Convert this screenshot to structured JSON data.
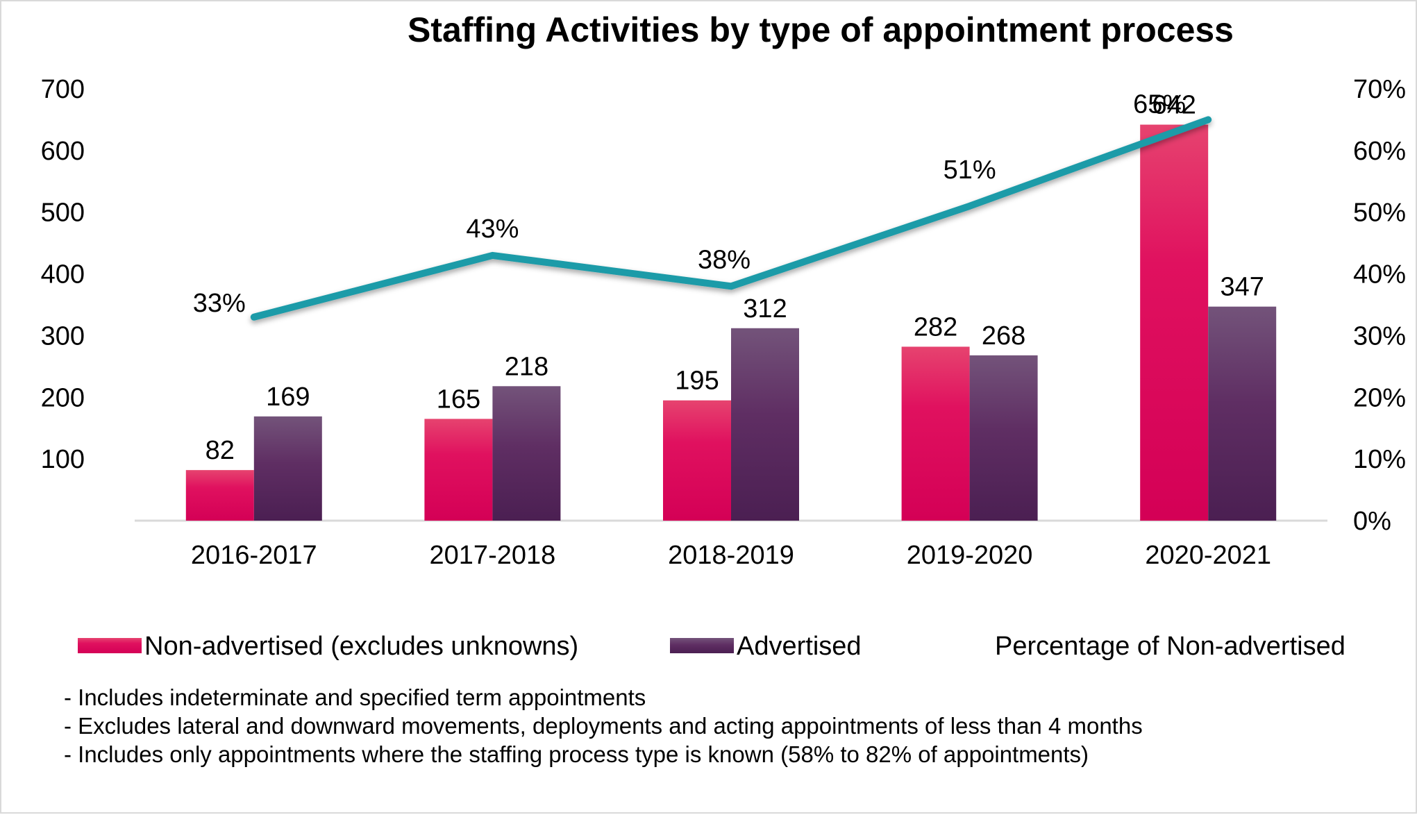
{
  "chart_data": {
    "type": "bar",
    "title": "Staffing Activities by type of appointment process",
    "categories": [
      "2016-2017",
      "2017-2018",
      "2018-2019",
      "2019-2020",
      "2020-2021"
    ],
    "series": [
      {
        "name": "Non-advertised (excludes unknowns)",
        "type": "bar",
        "axis": "left",
        "values": [
          82,
          165,
          195,
          282,
          642
        ],
        "labels": [
          "82",
          "165",
          "195",
          "282",
          "642"
        ],
        "color": "#e0115f"
      },
      {
        "name": "Advertised",
        "type": "bar",
        "axis": "left",
        "values": [
          169,
          218,
          312,
          268,
          347
        ],
        "labels": [
          "169",
          "218",
          "312",
          "268",
          "347"
        ],
        "color": "#5a2a5e"
      },
      {
        "name": "Percentage of Non-advertised",
        "type": "line",
        "axis": "right",
        "values": [
          33,
          43,
          38,
          51,
          65
        ],
        "labels": [
          "33%",
          "43%",
          "38%",
          "51%",
          "65%"
        ],
        "color": "#1a9ba8"
      }
    ],
    "ylim_left": [
      0,
      700
    ],
    "yticks_left": [
      {
        "value": 100,
        "label": "100"
      },
      {
        "value": 200,
        "label": "200"
      },
      {
        "value": 300,
        "label": "300"
      },
      {
        "value": 400,
        "label": "400"
      },
      {
        "value": 500,
        "label": "500"
      },
      {
        "value": 600,
        "label": "600"
      },
      {
        "value": 700,
        "label": "700"
      }
    ],
    "ylim_right": [
      0,
      70
    ],
    "yticks_right": [
      {
        "value": 0,
        "label": "0%"
      },
      {
        "value": 10,
        "label": "10%"
      },
      {
        "value": 20,
        "label": "20%"
      },
      {
        "value": 30,
        "label": "30%"
      },
      {
        "value": 40,
        "label": "40%"
      },
      {
        "value": 50,
        "label": "50%"
      },
      {
        "value": 60,
        "label": "60%"
      },
      {
        "value": 70,
        "label": "70%"
      }
    ],
    "xlabel": "",
    "ylabel": "",
    "grid": false,
    "legend_position": "bottom"
  },
  "legend": [
    {
      "label": "Non-advertised (excludes unknowns)",
      "kind": "bar",
      "color": "#e0115f"
    },
    {
      "label": "Advertised",
      "kind": "bar",
      "color": "#5a2a5e"
    },
    {
      "label": "Percentage of Non-advertised",
      "kind": "line",
      "color": "#1a9ba8"
    }
  ],
  "notes": [
    "- Includes indeterminate and specified term appointments",
    "- Excludes lateral and downward movements, deployments and acting appointments of less than 4 months",
    "- Includes only appointments where the staffing process type is known (58% to 82% of appointments)"
  ]
}
